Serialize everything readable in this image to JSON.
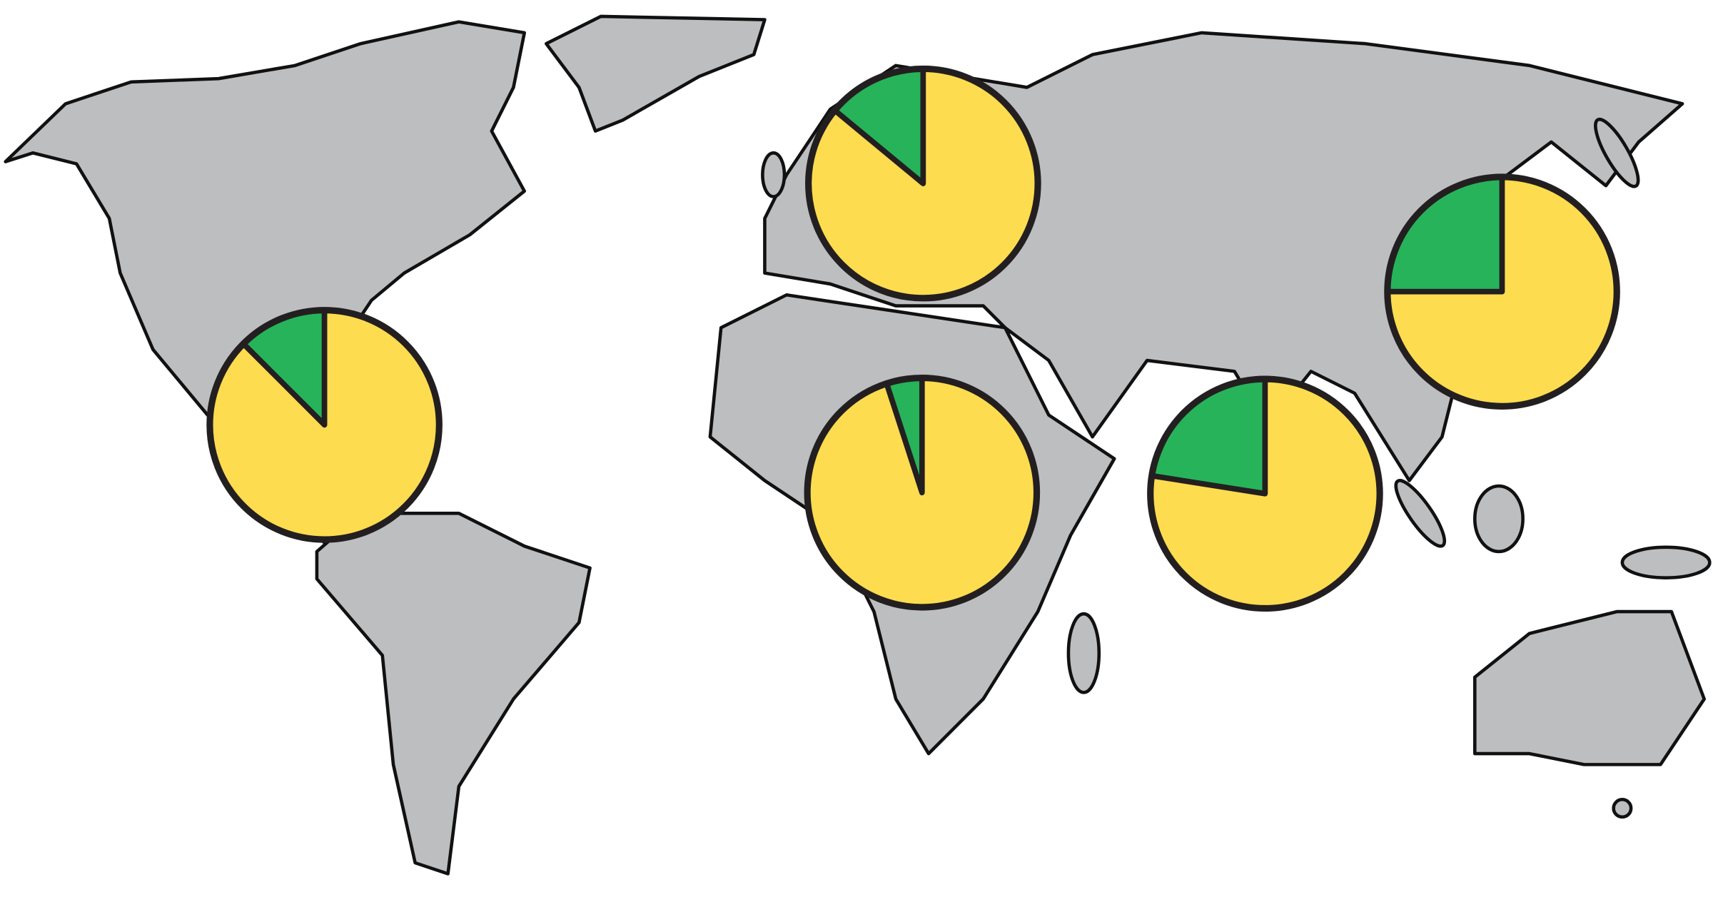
{
  "chart_data": [
    {
      "type": "pie",
      "values": [
        12.5,
        87.5
      ],
      "colors": [
        "#27b35a",
        "#fddc4f"
      ]
    },
    {
      "type": "pie",
      "values": [
        14,
        86
      ],
      "colors": [
        "#27b35a",
        "#fddc4f"
      ]
    },
    {
      "type": "pie",
      "values": [
        5,
        95
      ],
      "colors": [
        "#27b35a",
        "#fddc4f"
      ]
    },
    {
      "type": "pie",
      "values": [
        22.5,
        77.5
      ],
      "colors": [
        "#27b35a",
        "#fddc4f"
      ]
    },
    {
      "type": "pie",
      "values": [
        25,
        75
      ],
      "colors": [
        "#27b35a",
        "#fddc4f"
      ]
    }
  ]
}
